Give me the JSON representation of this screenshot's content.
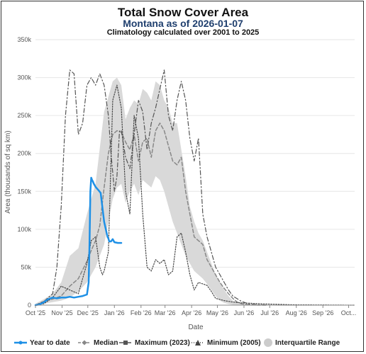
{
  "chart_data": {
    "type": "line",
    "title": "Total Snow Cover Area",
    "subtitle": "Montana as of 2026-01-07",
    "subtitle2": "Climatology calculated over 2001 to 2025",
    "ylabel": "Area (thousands of sq km)",
    "xlabel": "Date",
    "ylim": [
      0,
      350000
    ],
    "xlim": [
      0,
      372
    ],
    "yticks": [
      0,
      50000,
      100000,
      150000,
      200000,
      250000,
      300000,
      350000
    ],
    "ytick_labels": [
      "0",
      "50k",
      "100k",
      "150k",
      "200k",
      "250k",
      "300k",
      "350k"
    ],
    "xticks": [
      0,
      31,
      61,
      92,
      123,
      151,
      182,
      212,
      243,
      273,
      304,
      335,
      365
    ],
    "xtick_labels": [
      "Oct '25",
      "Nov '25",
      "Dec '25",
      "Jan '26",
      "Feb '26",
      "Mar '26",
      "Apr '26",
      "May '26",
      "Jun '26",
      "Jul '26",
      "Aug '26",
      "Sep '26",
      "Oct..."
    ],
    "x_note": "x values are days after Oct 1, 2025",
    "colors": {
      "ytd": "#1e90e6",
      "median": "#888888",
      "maximum": "#555555",
      "minimum": "#444444",
      "iqr": "#d9d9d9"
    },
    "series": [
      {
        "name": "Year to date",
        "style": "solid",
        "x": [
          0,
          5,
          10,
          15,
          20,
          25,
          30,
          35,
          40,
          45,
          50,
          55,
          60,
          62,
          63,
          64,
          65,
          66,
          67,
          68,
          70,
          73,
          76,
          80,
          84,
          85,
          86,
          88,
          90,
          92,
          96,
          100
        ],
        "y": [
          0,
          1000,
          4000,
          8000,
          10000,
          9000,
          10000,
          10000,
          11000,
          10000,
          11000,
          12000,
          14000,
          30000,
          80000,
          150000,
          168000,
          165000,
          163000,
          160000,
          156000,
          152000,
          148000,
          110000,
          90000,
          88000,
          84000,
          84000,
          87000,
          83000,
          82000,
          82000
        ]
      },
      {
        "name": "Median",
        "style": "dashed",
        "marker": "diamond",
        "x": [
          0,
          10,
          20,
          30,
          40,
          50,
          60,
          65,
          70,
          75,
          80,
          85,
          90,
          95,
          100,
          105,
          110,
          115,
          120,
          125,
          130,
          135,
          140,
          145,
          150,
          155,
          160,
          165,
          170,
          175,
          180,
          185,
          190,
          195,
          200,
          205,
          210,
          215,
          220,
          225,
          230,
          235,
          240,
          250,
          260,
          270
        ],
        "y": [
          0,
          5000,
          8000,
          12000,
          25000,
          35000,
          58000,
          72000,
          85000,
          105000,
          155000,
          200000,
          225000,
          230000,
          228000,
          215000,
          205000,
          225000,
          190000,
          215000,
          220000,
          195000,
          230000,
          240000,
          230000,
          210000,
          190000,
          185000,
          195000,
          150000,
          120000,
          90000,
          85000,
          80000,
          60000,
          50000,
          40000,
          30000,
          22000,
          15000,
          9000,
          4000,
          2000,
          500,
          100,
          0
        ]
      },
      {
        "name": "Maximum (2023)",
        "style": "dashdot",
        "marker": "square",
        "x": [
          0,
          10,
          20,
          25,
          30,
          35,
          40,
          45,
          50,
          55,
          60,
          65,
          70,
          75,
          80,
          85,
          88,
          92,
          95,
          98,
          100,
          105,
          110,
          115,
          120,
          125,
          130,
          135,
          140,
          145,
          150,
          155,
          160,
          165,
          170,
          175,
          180,
          185,
          190,
          195,
          200,
          205,
          210,
          215,
          220,
          225,
          230,
          240,
          250,
          270
        ],
        "y": [
          0,
          5000,
          15000,
          50000,
          130000,
          250000,
          310000,
          305000,
          225000,
          240000,
          290000,
          300000,
          290000,
          305000,
          290000,
          250000,
          200000,
          150000,
          170000,
          230000,
          230000,
          195000,
          180000,
          225000,
          270000,
          255000,
          205000,
          240000,
          260000,
          285000,
          310000,
          250000,
          230000,
          270000,
          295000,
          270000,
          220000,
          190000,
          220000,
          120000,
          90000,
          70000,
          50000,
          40000,
          30000,
          20000,
          12000,
          5000,
          1000,
          0
        ]
      },
      {
        "name": "Minimum (2005)",
        "style": "dotted",
        "marker": "triangle",
        "x": [
          0,
          10,
          20,
          30,
          40,
          50,
          55,
          60,
          65,
          70,
          75,
          78,
          80,
          85,
          90,
          95,
          100,
          105,
          110,
          115,
          120,
          125,
          130,
          135,
          140,
          145,
          150,
          155,
          160,
          165,
          170,
          175,
          180,
          185,
          190,
          195,
          200,
          205,
          210,
          220,
          230,
          240,
          250,
          260,
          270,
          300,
          372
        ],
        "y": [
          0,
          2000,
          10000,
          25000,
          20000,
          15000,
          35000,
          55000,
          85000,
          90000,
          50000,
          40000,
          45000,
          70000,
          270000,
          290000,
          260000,
          150000,
          120000,
          250000,
          220000,
          120000,
          50000,
          45000,
          60000,
          55000,
          60000,
          40000,
          45000,
          90000,
          95000,
          70000,
          40000,
          20000,
          30000,
          28000,
          26000,
          18000,
          9000,
          6000,
          4000,
          3000,
          2500,
          2000,
          1500,
          500,
          0
        ]
      }
    ],
    "iqr": {
      "name": "Interquartile Range",
      "x": [
        0,
        10,
        20,
        30,
        40,
        50,
        60,
        70,
        80,
        90,
        95,
        100,
        105,
        110,
        115,
        120,
        125,
        130,
        135,
        140,
        145,
        150,
        155,
        160,
        165,
        170,
        175,
        180,
        185,
        190,
        195,
        200,
        205,
        210,
        215,
        220,
        225,
        230,
        240,
        250,
        260,
        270
      ],
      "upper": [
        2000,
        8000,
        15000,
        30000,
        65000,
        75000,
        120000,
        160000,
        255000,
        295000,
        300000,
        290000,
        245000,
        260000,
        270000,
        265000,
        285000,
        280000,
        270000,
        295000,
        290000,
        270000,
        260000,
        240000,
        240000,
        205000,
        170000,
        130000,
        110000,
        95000,
        85000,
        70000,
        55000,
        40000,
        30000,
        20000,
        12000,
        6000,
        2000,
        500,
        100,
        0
      ],
      "lower": [
        0,
        2000,
        4000,
        6000,
        10000,
        18000,
        30000,
        50000,
        80000,
        140000,
        155000,
        160000,
        135000,
        150000,
        160000,
        145000,
        165000,
        160000,
        155000,
        170000,
        165000,
        150000,
        130000,
        110000,
        95000,
        80000,
        65000,
        55000,
        45000,
        40000,
        35000,
        28000,
        20000,
        12000,
        6000,
        3000,
        1500,
        500,
        0,
        0,
        0,
        0
      ]
    }
  },
  "legend": {
    "ytd": "Year to date",
    "median": "Median",
    "maximum": "Maximum (2023)",
    "minimum": "Minimum (2005)",
    "iqr": "Interquartile Range"
  }
}
